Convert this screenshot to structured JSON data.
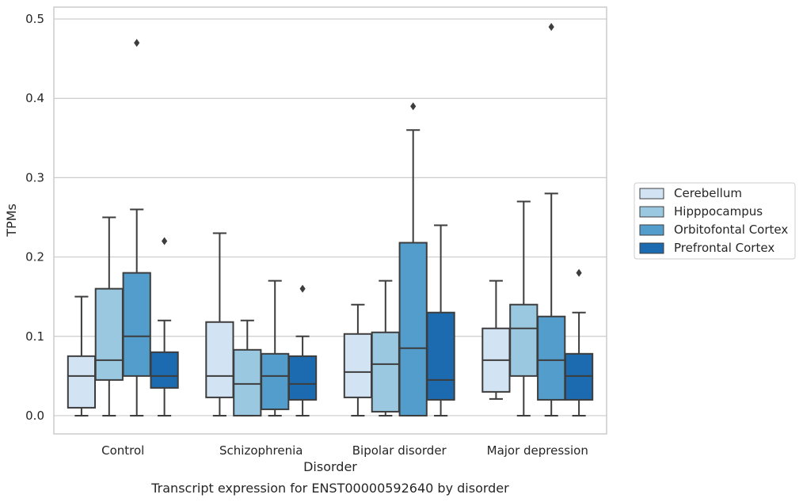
{
  "chart_data": {
    "type": "box",
    "caption": "Transcript expression for ENST00000592640 by disorder",
    "xlabel": "Disorder",
    "ylabel": "TPMs",
    "ylim": [
      -0.023,
      0.515
    ],
    "yticks": [
      0.0,
      0.1,
      0.2,
      0.3,
      0.4,
      0.5
    ],
    "ytick_labels": [
      "0.0",
      "0.1",
      "0.2",
      "0.3",
      "0.4",
      "0.5"
    ],
    "grid": true,
    "legend_position": "right",
    "categories": [
      "Control",
      "Schizophrenia",
      "Bipolar disorder",
      "Major depression"
    ],
    "series": [
      {
        "name": "Cerebellum",
        "color": "#d2e3f3",
        "boxes": [
          {
            "whisker_low": 0.0,
            "q1": 0.01,
            "median": 0.05,
            "q3": 0.075,
            "whisker_high": 0.15,
            "outliers": []
          },
          {
            "whisker_low": 0.0,
            "q1": 0.023,
            "median": 0.05,
            "q3": 0.118,
            "whisker_high": 0.23,
            "outliers": []
          },
          {
            "whisker_low": 0.0,
            "q1": 0.023,
            "median": 0.055,
            "q3": 0.103,
            "whisker_high": 0.14,
            "outliers": []
          },
          {
            "whisker_low": 0.021,
            "q1": 0.03,
            "median": 0.07,
            "q3": 0.11,
            "whisker_high": 0.17,
            "outliers": []
          }
        ]
      },
      {
        "name": "Hipppocampus",
        "color": "#9ac8e0",
        "boxes": [
          {
            "whisker_low": 0.0,
            "q1": 0.045,
            "median": 0.07,
            "q3": 0.16,
            "whisker_high": 0.25,
            "outliers": []
          },
          {
            "whisker_low": 0.0,
            "q1": 0.0,
            "median": 0.04,
            "q3": 0.083,
            "whisker_high": 0.12,
            "outliers": []
          },
          {
            "whisker_low": 0.0,
            "q1": 0.005,
            "median": 0.065,
            "q3": 0.105,
            "whisker_high": 0.17,
            "outliers": []
          },
          {
            "whisker_low": 0.0,
            "q1": 0.05,
            "median": 0.11,
            "q3": 0.14,
            "whisker_high": 0.27,
            "outliers": []
          }
        ]
      },
      {
        "name": "Orbitofontal Cortex",
        "color": "#529dcc",
        "boxes": [
          {
            "whisker_low": 0.0,
            "q1": 0.05,
            "median": 0.1,
            "q3": 0.18,
            "whisker_high": 0.26,
            "outliers": [
              0.47
            ]
          },
          {
            "whisker_low": 0.0,
            "q1": 0.008,
            "median": 0.05,
            "q3": 0.078,
            "whisker_high": 0.17,
            "outliers": []
          },
          {
            "whisker_low": 0.0,
            "q1": 0.0,
            "median": 0.085,
            "q3": 0.218,
            "whisker_high": 0.36,
            "outliers": [
              0.39
            ]
          },
          {
            "whisker_low": 0.0,
            "q1": 0.02,
            "median": 0.07,
            "q3": 0.125,
            "whisker_high": 0.28,
            "outliers": [
              0.49
            ]
          }
        ]
      },
      {
        "name": "Prefrontal Cortex",
        "color": "#1c6aaf",
        "boxes": [
          {
            "whisker_low": 0.0,
            "q1": 0.035,
            "median": 0.05,
            "q3": 0.08,
            "whisker_high": 0.12,
            "outliers": [
              0.22
            ]
          },
          {
            "whisker_low": 0.0,
            "q1": 0.02,
            "median": 0.04,
            "q3": 0.075,
            "whisker_high": 0.1,
            "outliers": [
              0.16
            ]
          },
          {
            "whisker_low": 0.0,
            "q1": 0.02,
            "median": 0.045,
            "q3": 0.13,
            "whisker_high": 0.24,
            "outliers": []
          },
          {
            "whisker_low": 0.0,
            "q1": 0.02,
            "median": 0.05,
            "q3": 0.078,
            "whisker_high": 0.13,
            "outliers": [
              0.18
            ]
          }
        ]
      }
    ]
  }
}
